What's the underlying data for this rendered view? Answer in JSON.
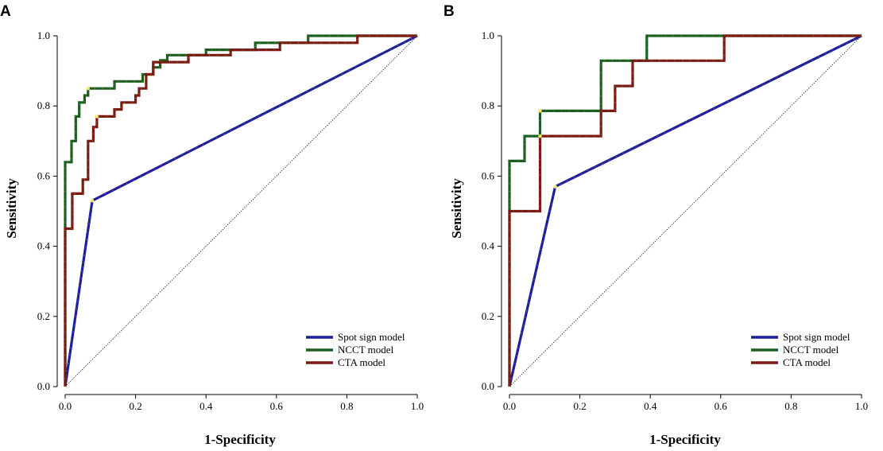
{
  "chart_data": [
    {
      "type": "line",
      "panel": "A",
      "xlabel": "1-Specificity",
      "ylabel": "Sensitivity",
      "xlim": [
        0,
        1
      ],
      "ylim": [
        0,
        1
      ],
      "xticks": [
        "0.0",
        "0.2",
        "0.4",
        "0.6",
        "0.8",
        "1.0"
      ],
      "yticks": [
        "0.0",
        "0.2",
        "0.4",
        "0.6",
        "0.8",
        "1.0"
      ],
      "legend_position": "bottom-right",
      "reference_line": [
        [
          0,
          0
        ],
        [
          1,
          1
        ]
      ],
      "series": [
        {
          "name": "Spot sign model",
          "color": "#1f1f9c",
          "points": [
            [
              0,
              0
            ],
            [
              0.077,
              0.53
            ],
            [
              1,
              1
            ]
          ],
          "markers": [
            [
              0.077,
              0.53
            ]
          ]
        },
        {
          "name": "NCCT model",
          "color": "#1b5e20",
          "points": [
            [
              0,
              0
            ],
            [
              0,
              0.45
            ],
            [
              0,
              0.64
            ],
            [
              0.018,
              0.64
            ],
            [
              0.018,
              0.7
            ],
            [
              0.03,
              0.7
            ],
            [
              0.03,
              0.77
            ],
            [
              0.04,
              0.77
            ],
            [
              0.04,
              0.81
            ],
            [
              0.055,
              0.81
            ],
            [
              0.055,
              0.83
            ],
            [
              0.065,
              0.83
            ],
            [
              0.065,
              0.85
            ],
            [
              0.14,
              0.85
            ],
            [
              0.14,
              0.87
            ],
            [
              0.22,
              0.87
            ],
            [
              0.22,
              0.89
            ],
            [
              0.25,
              0.89
            ],
            [
              0.25,
              0.91
            ],
            [
              0.27,
              0.91
            ],
            [
              0.27,
              0.93
            ],
            [
              0.29,
              0.93
            ],
            [
              0.29,
              0.945
            ],
            [
              0.4,
              0.945
            ],
            [
              0.4,
              0.96
            ],
            [
              0.54,
              0.96
            ],
            [
              0.54,
              0.98
            ],
            [
              0.69,
              0.98
            ],
            [
              0.69,
              1.0
            ],
            [
              1,
              1
            ]
          ],
          "markers": [
            [
              0.065,
              0.85
            ]
          ]
        },
        {
          "name": "CTA model",
          "color": "#7a1a12",
          "points": [
            [
              0,
              0
            ],
            [
              0,
              0.45
            ],
            [
              0.02,
              0.45
            ],
            [
              0.02,
              0.55
            ],
            [
              0.05,
              0.55
            ],
            [
              0.05,
              0.59
            ],
            [
              0.065,
              0.59
            ],
            [
              0.065,
              0.7
            ],
            [
              0.08,
              0.7
            ],
            [
              0.08,
              0.74
            ],
            [
              0.09,
              0.74
            ],
            [
              0.09,
              0.77
            ],
            [
              0.14,
              0.77
            ],
            [
              0.14,
              0.79
            ],
            [
              0.16,
              0.79
            ],
            [
              0.16,
              0.81
            ],
            [
              0.2,
              0.81
            ],
            [
              0.2,
              0.83
            ],
            [
              0.21,
              0.83
            ],
            [
              0.21,
              0.85
            ],
            [
              0.23,
              0.85
            ],
            [
              0.23,
              0.89
            ],
            [
              0.25,
              0.89
            ],
            [
              0.25,
              0.925
            ],
            [
              0.35,
              0.925
            ],
            [
              0.35,
              0.945
            ],
            [
              0.47,
              0.945
            ],
            [
              0.47,
              0.96
            ],
            [
              0.61,
              0.96
            ],
            [
              0.61,
              0.98
            ],
            [
              0.83,
              0.98
            ],
            [
              0.83,
              1.0
            ],
            [
              1,
              1
            ]
          ],
          "markers": [
            [
              0.09,
              0.77
            ]
          ]
        }
      ]
    },
    {
      "type": "line",
      "panel": "B",
      "xlabel": "1-Specificity",
      "ylabel": "Sensitivity",
      "xlim": [
        0,
        1
      ],
      "ylim": [
        0,
        1
      ],
      "xticks": [
        "0.0",
        "0.2",
        "0.4",
        "0.6",
        "0.8",
        "1.0"
      ],
      "yticks": [
        "0.0",
        "0.2",
        "0.4",
        "0.6",
        "0.8",
        "1.0"
      ],
      "legend_position": "bottom-right",
      "reference_line": [
        [
          0,
          0
        ],
        [
          1,
          1
        ]
      ],
      "series": [
        {
          "name": "Spot sign model",
          "color": "#1f1f9c",
          "points": [
            [
              0,
              0
            ],
            [
              0.13,
              0.57
            ],
            [
              1,
              1
            ]
          ],
          "markers": [
            [
              0.13,
              0.57
            ]
          ]
        },
        {
          "name": "NCCT model",
          "color": "#1b5e20",
          "points": [
            [
              0,
              0
            ],
            [
              0,
              0.5
            ],
            [
              0,
              0.643
            ],
            [
              0.043,
              0.643
            ],
            [
              0.043,
              0.714
            ],
            [
              0.087,
              0.714
            ],
            [
              0.087,
              0.786
            ],
            [
              0.26,
              0.786
            ],
            [
              0.26,
              0.929
            ],
            [
              0.39,
              0.929
            ],
            [
              0.39,
              1.0
            ],
            [
              1,
              1
            ]
          ],
          "markers": [
            [
              0.087,
              0.786
            ]
          ]
        },
        {
          "name": "CTA model",
          "color": "#7a1a12",
          "points": [
            [
              0,
              0
            ],
            [
              0,
              0.5
            ],
            [
              0.087,
              0.5
            ],
            [
              0.087,
              0.714
            ],
            [
              0.26,
              0.714
            ],
            [
              0.26,
              0.786
            ],
            [
              0.3,
              0.786
            ],
            [
              0.3,
              0.857
            ],
            [
              0.35,
              0.857
            ],
            [
              0.35,
              0.929
            ],
            [
              0.61,
              0.929
            ],
            [
              0.61,
              1.0
            ],
            [
              1,
              1
            ]
          ],
          "markers": [
            [
              0.087,
              0.714
            ]
          ]
        }
      ]
    }
  ]
}
